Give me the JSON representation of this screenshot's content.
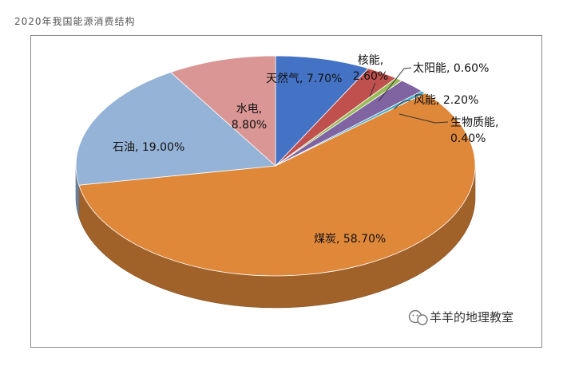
{
  "page": {
    "title": "2020年我国能源消费结构"
  },
  "watermark": {
    "text": "羊羊的地理教室",
    "icon": "wechat-icon"
  },
  "chart_data": {
    "type": "pie",
    "title": "",
    "unit": "%",
    "slices": [
      {
        "key": "tianranqi",
        "label": "天然气",
        "value": 7.7,
        "display": "天然气, 7.70%",
        "color": "#4472c4"
      },
      {
        "key": "heneng",
        "label": "核能",
        "value": 2.6,
        "display_lines": [
          "核能,",
          "2.60%"
        ],
        "color": "#c0504d"
      },
      {
        "key": "taiyangneng",
        "label": "太阳能",
        "value": 0.6,
        "display": "太阳能, 0.60%",
        "color": "#9bbb59"
      },
      {
        "key": "fengneng",
        "label": "风能",
        "value": 2.2,
        "display": "风能, 2.20%",
        "color": "#8064a2"
      },
      {
        "key": "shengwuzhineng",
        "label": "生物质能",
        "value": 0.4,
        "display_lines": [
          "生物质能,",
          "0.40%"
        ],
        "color": "#4bacc6"
      },
      {
        "key": "meitan",
        "label": "煤炭",
        "value": 58.7,
        "display": "煤炭, 58.70%",
        "color": "#e0883a"
      },
      {
        "key": "shiyou",
        "label": "石油",
        "value": 19.0,
        "display": "石油, 19.00%",
        "color": "#95b3d7"
      },
      {
        "key": "shuidian",
        "label": "水电",
        "value": 8.8,
        "display_lines": [
          "水电,",
          "8.80%"
        ],
        "color": "#d99694"
      }
    ]
  }
}
